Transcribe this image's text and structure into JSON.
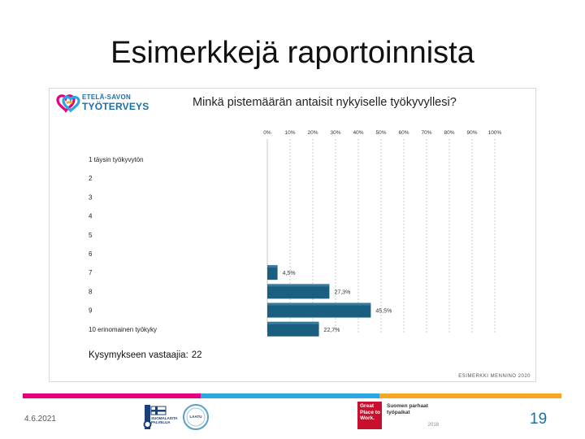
{
  "slide": {
    "title": "Esimerkkejä raportoinnista",
    "date": "4.6.2021",
    "page_number": "19"
  },
  "report": {
    "logo_line1": "ETELÄ-SAVON",
    "logo_line2": "TYÖTERVEYS",
    "respondents_label": "Kysymykseen vastaajia:",
    "respondents_value": "22",
    "credit": "ESIMERKKI MENNINO 2020"
  },
  "chart_data": {
    "type": "bar",
    "orientation": "horizontal",
    "title": "Minkä pistemäärän antaisit nykyiselle työkyvyllesi?",
    "x_tick_labels": [
      "0%",
      "10%",
      "20%",
      "30%",
      "40%",
      "50%",
      "60%",
      "70%",
      "80%",
      "90%",
      "100%"
    ],
    "xlim": [
      0,
      100
    ],
    "categories": [
      "1 täysin työkyvytön",
      "2",
      "3",
      "4",
      "5",
      "6",
      "7",
      "8",
      "9",
      "10 erinomainen työkyky"
    ],
    "values": [
      0,
      0,
      0,
      0,
      0,
      0,
      4.5,
      27.3,
      45.5,
      22.7
    ],
    "data_labels": [
      "",
      "",
      "",
      "",
      "",
      "",
      "4,5%",
      "27,3%",
      "45,5%",
      "22,7%"
    ],
    "bar_color": "#1b5f80",
    "grid": true
  },
  "footer": {
    "badge1_text": "SUOMALAISTA PALVELUA",
    "badge2_text": "LAATU",
    "gptw_text": "Great Place to Work.",
    "gptw_side_title": "Suomen parhaat työpaikat",
    "gptw_side_year": "2018"
  },
  "colors": {
    "accent_magenta": "#e5007e",
    "accent_blue": "#29a9e0",
    "accent_orange": "#f5a623",
    "gptw_red": "#c8102e"
  }
}
